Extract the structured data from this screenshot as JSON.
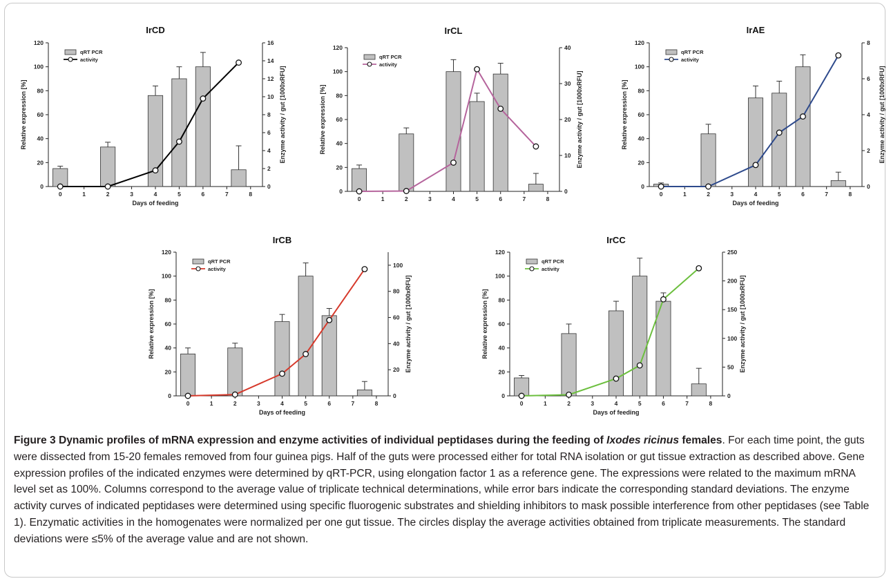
{
  "chart_data": [
    {
      "type": "bar+line",
      "title": "IrCD",
      "xlabel": "Days of feeding",
      "ylabel": "Relative expression [%]",
      "y2label": "Enzyme activity / gut [1000xRFU]",
      "xlim": [
        -0.5,
        8.5
      ],
      "ylim": [
        0,
        120
      ],
      "y2lim": [
        0,
        16
      ],
      "xticks": [
        0,
        1,
        2,
        3,
        4,
        5,
        6,
        7,
        8
      ],
      "yticks": [
        0,
        20,
        40,
        60,
        80,
        100,
        120
      ],
      "y2ticks": [
        0,
        2,
        4,
        6,
        8,
        10,
        12,
        14,
        16
      ],
      "bar_x": [
        0,
        2,
        4,
        5,
        6,
        7.5
      ],
      "bar_values": [
        15,
        33,
        76,
        90,
        100,
        14
      ],
      "bar_errors": [
        2,
        4,
        8,
        10,
        12,
        20
      ],
      "line_x": [
        0,
        2,
        4,
        5,
        6,
        7.5
      ],
      "line_values": [
        0,
        0,
        1.8,
        5,
        9.8,
        13.8
      ],
      "line_color": "#000000",
      "legend": {
        "bar": "qRT PCR",
        "line": "activity",
        "position": "top-left"
      }
    },
    {
      "type": "bar+line",
      "title": "IrCL",
      "xlabel": "",
      "ylabel": "Relative expression [%]",
      "y2label": "Enzyme activity / gut [1000xRFU]",
      "xlim": [
        -0.5,
        8.5
      ],
      "ylim": [
        0,
        120
      ],
      "y2lim": [
        0,
        40
      ],
      "xticks": [
        0,
        1,
        2,
        3,
        4,
        5,
        6,
        7,
        8
      ],
      "yticks": [
        0,
        20,
        40,
        60,
        80,
        100,
        120
      ],
      "y2ticks": [
        0,
        10,
        20,
        30,
        40
      ],
      "bar_x": [
        0,
        2,
        4,
        5,
        6,
        7.5
      ],
      "bar_values": [
        19,
        48,
        100,
        75,
        98,
        6
      ],
      "bar_errors": [
        3,
        5,
        10,
        7,
        9,
        9
      ],
      "line_x": [
        0,
        2,
        4,
        5,
        6,
        7.5
      ],
      "line_values": [
        0,
        0.1,
        8,
        34,
        23,
        12.5
      ],
      "line_color": "#b5649c",
      "legend": {
        "bar": "qRT PCR",
        "line": "activity",
        "position": "top-left"
      }
    },
    {
      "type": "bar+line",
      "title": "IrAE",
      "xlabel": "Days of feeding",
      "ylabel": "Relative expression [%]",
      "y2label": "Enzyme activity / gut [1000xRFU]",
      "xlim": [
        -0.5,
        8.5
      ],
      "ylim": [
        0,
        120
      ],
      "y2lim": [
        0,
        8
      ],
      "xticks": [
        0,
        1,
        2,
        3,
        4,
        5,
        6,
        7,
        8
      ],
      "yticks": [
        0,
        20,
        40,
        60,
        80,
        100,
        120
      ],
      "y2ticks": [
        0,
        2,
        4,
        6,
        8
      ],
      "bar_x": [
        0,
        2,
        4,
        5,
        6,
        7.5
      ],
      "bar_values": [
        2,
        44,
        74,
        78,
        100,
        5
      ],
      "bar_errors": [
        1,
        8,
        10,
        10,
        10,
        7
      ],
      "line_x": [
        0,
        2,
        4,
        5,
        6,
        7.5
      ],
      "line_values": [
        0,
        0,
        1.2,
        3,
        3.9,
        7.3
      ],
      "line_color": "#2e4a8c",
      "legend": {
        "bar": "qRT PCR",
        "line": "activity",
        "position": "top-left"
      }
    },
    {
      "type": "bar+line",
      "title": "IrCB",
      "xlabel": "Days of feeding",
      "ylabel": "Relative expression [%]",
      "y2label": "Enzyme activity / gut [1000xRFU]",
      "xlim": [
        -0.5,
        8.5
      ],
      "ylim": [
        0,
        120
      ],
      "y2lim": [
        0,
        110
      ],
      "xticks": [
        0,
        1,
        2,
        3,
        4,
        5,
        6,
        7,
        8
      ],
      "yticks": [
        0,
        20,
        40,
        60,
        80,
        100,
        120
      ],
      "y2ticks": [
        0,
        20,
        40,
        60,
        80,
        100
      ],
      "bar_x": [
        0,
        2,
        4,
        5,
        6,
        7.5
      ],
      "bar_values": [
        35,
        40,
        62,
        100,
        67,
        5
      ],
      "bar_errors": [
        5,
        4,
        6,
        11,
        6,
        7
      ],
      "line_x": [
        0,
        2,
        4,
        5,
        6,
        7.5
      ],
      "line_values": [
        0,
        1,
        17,
        32,
        58,
        97
      ],
      "line_color": "#d6392b",
      "legend": {
        "bar": "qRT PCR",
        "line": "activity",
        "position": "top-left"
      }
    },
    {
      "type": "bar+line",
      "title": "IrCC",
      "xlabel": "Days of feeding",
      "ylabel": "Relative expression [%]",
      "y2label": "Enzyme activity / gut [1000xRFU]",
      "xlim": [
        -0.5,
        8.5
      ],
      "ylim": [
        0,
        120
      ],
      "y2lim": [
        0,
        250
      ],
      "xticks": [
        0,
        1,
        2,
        3,
        4,
        5,
        6,
        7,
        8
      ],
      "yticks": [
        0,
        20,
        40,
        60,
        80,
        100,
        120
      ],
      "y2ticks": [
        0,
        50,
        100,
        150,
        200,
        250
      ],
      "bar_x": [
        0,
        2,
        4,
        5,
        6,
        7.5
      ],
      "bar_values": [
        15,
        52,
        71,
        100,
        79,
        10
      ],
      "bar_errors": [
        2,
        8,
        8,
        15,
        7,
        13
      ],
      "line_x": [
        0,
        2,
        4,
        5,
        6,
        7.5
      ],
      "line_values": [
        0,
        2,
        30,
        53,
        168,
        222
      ],
      "line_color": "#6cbf3e",
      "legend": {
        "bar": "qRT PCR",
        "line": "activity",
        "position": "top-left"
      }
    }
  ],
  "caption": {
    "label": "Figure 3",
    "title_before_italic": "Dynamic profiles of mRNA expression and enzyme activities of individual peptidases during the feeding of ",
    "title_italic": "Ixodes ricinus",
    "title_after_italic": " females",
    "body": ". For each time point, the guts were dissected from 15-20 females removed from four guinea pigs. Half of the guts were processed either for total RNA isolation or gut tissue extraction as described above. Gene expression profiles of the indicated enzymes were determined by qRT-PCR, using elongation factor 1 as a reference gene. The expressions were related to the maximum mRNA level set as 100%. Columns correspond to the average value of triplicate technical determinations, while error bars indicate the corresponding standard deviations. The enzyme activity curves of indicated peptidases were determined using specific fluorogenic substrates and shielding inhibitors to mask possible interference from other peptidases (see Table 1). Enzymatic activities in the homogenates were normalized per one gut tissue. The circles display the average activities obtained from triplicate measurements. The standard deviations were ≤5% of the average value and are not shown."
  },
  "colors": {
    "bar_fill": "#c0c0c0",
    "bar_stroke": "#333333",
    "axis": "#222222",
    "caption_text": "#231f20"
  }
}
